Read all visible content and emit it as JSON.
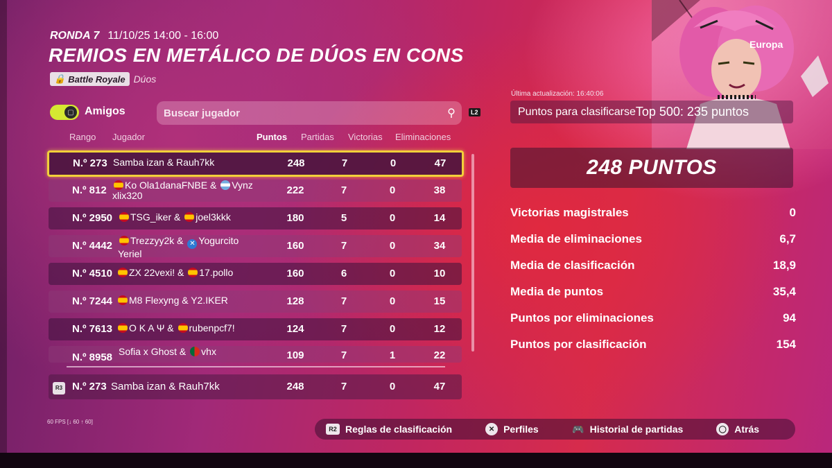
{
  "header": {
    "round_label": "RONDA 7",
    "date": "11/10/25 14:00 - 16:00",
    "title": "REMIOS EN METÁLICO DE DÚOS EN CONS",
    "mode_badge": "Battle Royale",
    "mode_sub": "Dúos",
    "region": "Europa"
  },
  "filters": {
    "friends_label": "Amigos",
    "search_placeholder": "Buscar jugador",
    "l2_hint": "L2"
  },
  "table": {
    "columns": [
      "Rango",
      "Jugador",
      "Puntos",
      "Partidas",
      "Victorias",
      "Eliminaciones"
    ],
    "rows": [
      {
        "rank": "N.º 273",
        "player": "Samba izan & Rauh7kk",
        "points": "248",
        "matches": "7",
        "wins": "0",
        "elims": "47"
      },
      {
        "rank": "N.º 812",
        "player_a": "Ko Ola1danaFNBE &",
        "player_b": "Vynz",
        "player_line2": "xlix320",
        "points": "222",
        "matches": "7",
        "wins": "0",
        "elims": "38"
      },
      {
        "rank": "N.º 2950",
        "player_a": "TSG_iker &",
        "player_b": "joel3kkk",
        "points": "180",
        "matches": "5",
        "wins": "0",
        "elims": "14"
      },
      {
        "rank": "N.º 4442",
        "player_a": "Trezzyy2k &",
        "player_b": "Yogurcito",
        "player_line2": "Yeriel",
        "points": "160",
        "matches": "7",
        "wins": "0",
        "elims": "34"
      },
      {
        "rank": "N.º 4510",
        "player_a": "ZX 22vexi! &",
        "player_b": "17.pollo",
        "points": "160",
        "matches": "6",
        "wins": "0",
        "elims": "10"
      },
      {
        "rank": "N.º 7244",
        "player_a": "M8 Flexyng & Y2.IKER",
        "points": "128",
        "matches": "7",
        "wins": "0",
        "elims": "15"
      },
      {
        "rank": "N.º 7613",
        "player_a": "O K A Ψ &",
        "player_b": "rubenpcf7!",
        "points": "124",
        "matches": "7",
        "wins": "0",
        "elims": "12"
      },
      {
        "rank": "N.º 8958",
        "player_a": "Sofia x Ghost &",
        "player_b": "vhx",
        "points": "109",
        "matches": "7",
        "wins": "1",
        "elims": "22"
      }
    ],
    "mine": {
      "rank": "N.º 273",
      "player": "Samba izan & Rauh7kk",
      "points": "248",
      "matches": "7",
      "wins": "0",
      "elims": "47",
      "hint": "R3"
    }
  },
  "fps": "60 FPS [↓ 60 ↑ 60]",
  "actions": [
    {
      "glyph": "R2",
      "label": "Reglas de clasificación"
    },
    {
      "glyph": "✕",
      "label": "Perfiles"
    },
    {
      "glyph": "🎮",
      "label": "Historial de partidas"
    },
    {
      "glyph": "◯",
      "label": "Atrás"
    }
  ],
  "summary": {
    "updated": "Última actualización: 16:40:06",
    "qualify_label": "Puntos para clasificarse",
    "qualify_value": "Top 500: 235 puntos",
    "points_big": "248 PUNTOS",
    "stats": [
      {
        "label": "Victorias magistrales",
        "value": "0"
      },
      {
        "label": "Media de eliminaciones",
        "value": "6,7"
      },
      {
        "label": "Media de clasificación",
        "value": "18,9"
      },
      {
        "label": "Media de puntos",
        "value": "35,4"
      },
      {
        "label": "Puntos por eliminaciones",
        "value": "94"
      },
      {
        "label": "Puntos por clasificación",
        "value": "154"
      }
    ]
  },
  "colors": {
    "highlight": "#f2d03a",
    "toggle": "#d5e832"
  }
}
